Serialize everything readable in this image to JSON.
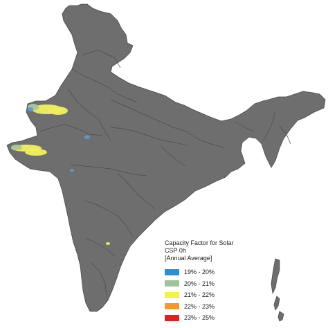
{
  "map": {
    "land_color": "#6e6e6e",
    "boundary_color": "#4a4a4a",
    "highlight_color": "#f2ef5c",
    "secondary_highlight_color": "#a8c89a",
    "tertiary_highlight_color": "#5a9bd3"
  },
  "legend": {
    "title_line1": "Capacity Factor for Solar CSP 0h",
    "title_line2": "[Annual Average]",
    "items": [
      {
        "label": "19% - 20%",
        "color": "#2d8fd3"
      },
      {
        "label": "20% - 21%",
        "color": "#9fc39a"
      },
      {
        "label": "21% - 22%",
        "color": "#f4f14a"
      },
      {
        "label": "22% - 23%",
        "color": "#f39a2b"
      },
      {
        "label": "23% - 25%",
        "color": "#e41e1e"
      }
    ]
  }
}
